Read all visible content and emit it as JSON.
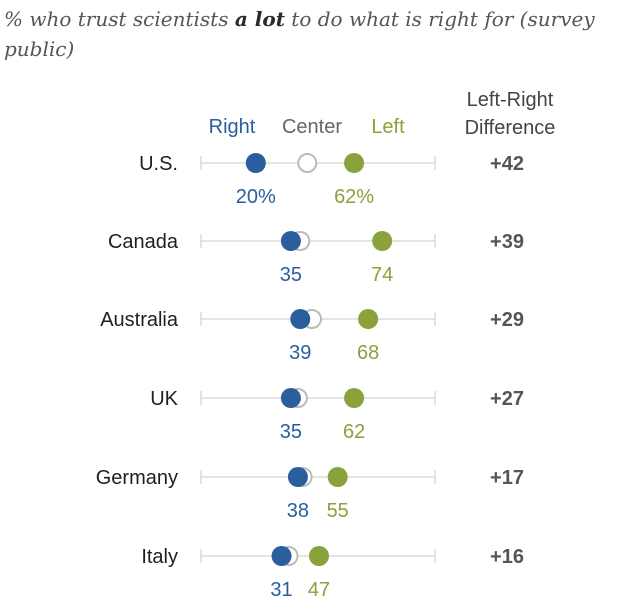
{
  "title": {
    "prefix": "% who trust scientists ",
    "emphasis": "a lot",
    "suffix": " to do what is right for (survey public)"
  },
  "legend": {
    "right": "Right",
    "center": "Center",
    "left": "Left"
  },
  "diff_header": [
    "Left-Right",
    "Difference"
  ],
  "colors": {
    "right": "#2a5e9c",
    "left": "#8aa23b",
    "center_stroke": "#bbbbbb",
    "line": "#c8c8c8"
  },
  "chart_data": {
    "type": "dot",
    "series": [
      {
        "name": "Right",
        "values": [
          20,
          35,
          39,
          35,
          38,
          31
        ]
      },
      {
        "name": "Center",
        "values": [
          42,
          39,
          44,
          38,
          40,
          34
        ]
      },
      {
        "name": "Left",
        "values": [
          62,
          74,
          68,
          62,
          55,
          47
        ]
      }
    ],
    "countries": [
      "U.S.",
      "Canada",
      "Australia",
      "UK",
      "Germany",
      "Italy"
    ],
    "value_labels": {
      "right": [
        "20%",
        "35",
        "39",
        "35",
        "38",
        "31"
      ],
      "left": [
        "62%",
        "74",
        "68",
        "62",
        "55",
        "47"
      ]
    },
    "differences": [
      "+42",
      "+39",
      "+29",
      "+27",
      "+17",
      "+16"
    ],
    "xlim": [
      0,
      100
    ]
  }
}
